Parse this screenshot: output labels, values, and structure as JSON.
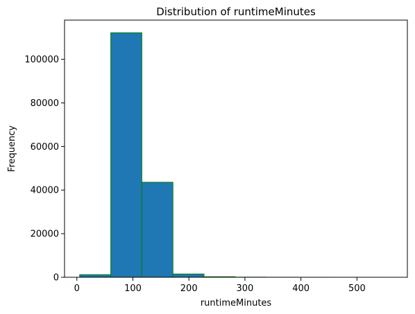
{
  "chart_data": {
    "type": "bar",
    "title": "Distribution of runtimeMinutes",
    "xlabel": "runtimeMinutes",
    "ylabel": "Frequency",
    "xlim": [
      -22,
      590
    ],
    "ylim": [
      0,
      118000
    ],
    "grid": false,
    "bar_color": "#1f77b4",
    "edge_color": "#008000",
    "bins": [
      {
        "start": 5,
        "end": 60.5,
        "count": 1200
      },
      {
        "start": 60.5,
        "end": 116,
        "count": 112200
      },
      {
        "start": 116,
        "end": 171.5,
        "count": 43600
      },
      {
        "start": 171.5,
        "end": 227,
        "count": 1500
      },
      {
        "start": 227,
        "end": 282.5,
        "count": 250
      },
      {
        "start": 282.5,
        "end": 338,
        "count": 60
      },
      {
        "start": 338,
        "end": 393.5,
        "count": 20
      },
      {
        "start": 393.5,
        "end": 449,
        "count": 10
      },
      {
        "start": 449,
        "end": 504.5,
        "count": 5
      },
      {
        "start": 504.5,
        "end": 560,
        "count": 5
      }
    ],
    "xticks": [
      {
        "value": 0,
        "label": "0"
      },
      {
        "value": 100,
        "label": "100"
      },
      {
        "value": 200,
        "label": "200"
      },
      {
        "value": 300,
        "label": "300"
      },
      {
        "value": 400,
        "label": "400"
      },
      {
        "value": 500,
        "label": "500"
      }
    ],
    "yticks": [
      {
        "value": 0,
        "label": "0"
      },
      {
        "value": 20000,
        "label": "20000"
      },
      {
        "value": 40000,
        "label": "40000"
      },
      {
        "value": 60000,
        "label": "60000"
      },
      {
        "value": 80000,
        "label": "80000"
      },
      {
        "value": 100000,
        "label": "100000"
      }
    ]
  }
}
